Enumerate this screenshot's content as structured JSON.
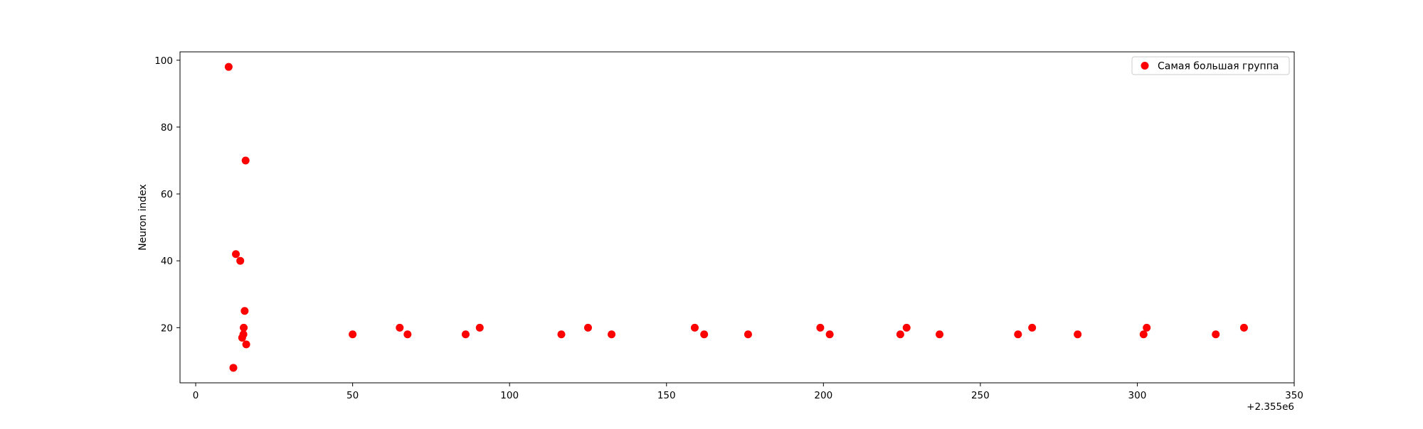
{
  "chart_data": {
    "type": "scatter",
    "title": "",
    "xlabel": "",
    "ylabel": "Neuron index",
    "x_offset_label": "+2.355e6",
    "xlim": [
      -5,
      350
    ],
    "ylim": [
      3.5,
      102.5
    ],
    "xticks": [
      0,
      50,
      100,
      150,
      200,
      250,
      300,
      350
    ],
    "yticks": [
      20,
      40,
      60,
      80,
      100
    ],
    "grid": false,
    "legend_position": "top-right",
    "marker_color": "#ff0000",
    "series": [
      {
        "name": "Самая большая группа",
        "color": "#ff0000",
        "points": [
          {
            "x": 10.5,
            "y": 98
          },
          {
            "x": 12,
            "y": 8
          },
          {
            "x": 12.8,
            "y": 42
          },
          {
            "x": 14.2,
            "y": 40
          },
          {
            "x": 14.8,
            "y": 17
          },
          {
            "x": 15.2,
            "y": 18
          },
          {
            "x": 15.3,
            "y": 20
          },
          {
            "x": 15.6,
            "y": 25
          },
          {
            "x": 15.9,
            "y": 70
          },
          {
            "x": 16.1,
            "y": 15
          },
          {
            "x": 50,
            "y": 18
          },
          {
            "x": 65,
            "y": 20
          },
          {
            "x": 67.5,
            "y": 18
          },
          {
            "x": 86,
            "y": 18
          },
          {
            "x": 90.5,
            "y": 20
          },
          {
            "x": 116.5,
            "y": 18
          },
          {
            "x": 125,
            "y": 20
          },
          {
            "x": 132.5,
            "y": 18
          },
          {
            "x": 159,
            "y": 20
          },
          {
            "x": 162,
            "y": 18
          },
          {
            "x": 176,
            "y": 18
          },
          {
            "x": 199,
            "y": 20
          },
          {
            "x": 202,
            "y": 18
          },
          {
            "x": 224.5,
            "y": 18
          },
          {
            "x": 226.5,
            "y": 20
          },
          {
            "x": 237,
            "y": 18
          },
          {
            "x": 262,
            "y": 18
          },
          {
            "x": 266.5,
            "y": 20
          },
          {
            "x": 281,
            "y": 18
          },
          {
            "x": 302,
            "y": 18
          },
          {
            "x": 303,
            "y": 20
          },
          {
            "x": 325,
            "y": 18
          },
          {
            "x": 334,
            "y": 20
          }
        ]
      }
    ]
  }
}
